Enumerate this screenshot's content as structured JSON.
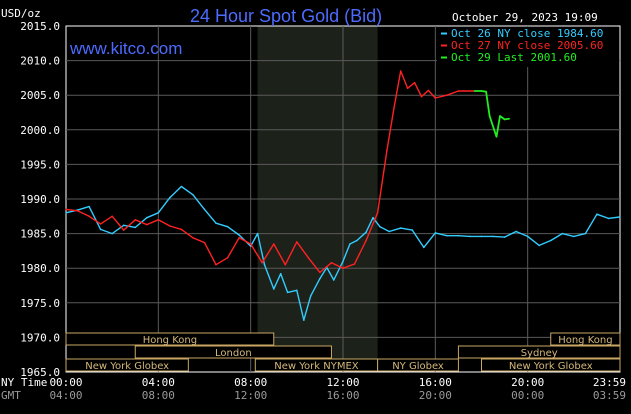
{
  "header": {
    "title": "24 Hour Spot Gold (Bid)",
    "brand": "www.kitco.com",
    "datetime": "October 29, 2023 19:09",
    "y_unit": "USD/oz"
  },
  "chart_data": {
    "type": "line",
    "ylim": [
      1965,
      2015
    ],
    "yticks": [
      "2015.0",
      "2010.0",
      "2005.0",
      "2000.0",
      "1995.0",
      "1990.0",
      "1985.0",
      "1980.0",
      "1975.0",
      "1970.0",
      "1965.0"
    ],
    "xlim": [
      0,
      24
    ],
    "xticks_ny": [
      "00:00",
      "04:00",
      "08:00",
      "12:00",
      "16:00",
      "20:00",
      "23:59"
    ],
    "xticks_gmt": [
      "04:00",
      "08:00",
      "12:00",
      "16:00",
      "20:00",
      "00:00",
      "03:59"
    ],
    "xaxis_row_labels": [
      "NY Time",
      "GMT"
    ],
    "grid": true,
    "shaded_hours": [
      8.3,
      13.5
    ],
    "legend_placement": "top-right",
    "series": [
      {
        "name": "Oct 26 NY close 1984.60",
        "color": "#33ccff",
        "x": [
          0,
          0.5,
          1,
          1.5,
          2,
          2.5,
          3,
          3.5,
          4,
          4.5,
          5,
          5.5,
          6,
          6.5,
          7,
          7.5,
          8,
          8.3,
          8.6,
          9,
          9.3,
          9.6,
          10,
          10.3,
          10.6,
          11,
          11.3,
          11.6,
          12,
          12.3,
          12.6,
          13,
          13.3,
          13.6,
          14,
          14.5,
          15,
          15.5,
          16,
          16.5,
          17,
          17.5,
          18,
          18.5,
          19,
          19.5,
          20,
          20.5,
          21,
          21.5,
          22,
          22.5,
          23,
          23.5,
          23.98
        ],
        "values": [
          1988.0,
          1988.4,
          1988.9,
          1985.6,
          1985.0,
          1986.2,
          1985.9,
          1987.3,
          1988.0,
          1990.2,
          1991.8,
          1990.6,
          1988.5,
          1986.5,
          1986.0,
          1984.8,
          1983.2,
          1985.0,
          1980.5,
          1977.0,
          1979.2,
          1976.5,
          1976.8,
          1972.5,
          1976.0,
          1978.5,
          1980.1,
          1978.3,
          1981.0,
          1983.5,
          1984.0,
          1985.2,
          1987.3,
          1986.0,
          1985.3,
          1985.8,
          1985.5,
          1983.0,
          1985.1,
          1984.7,
          1984.7,
          1984.6,
          1984.6,
          1984.6,
          1984.5,
          1985.3,
          1984.6,
          1983.3,
          1984.0,
          1985.0,
          1984.6,
          1985.0,
          1987.8,
          1987.2,
          1987.4
        ]
      },
      {
        "name": "Oct 27 NY close 2005.60",
        "color": "#ff2222",
        "x": [
          0,
          0.5,
          1,
          1.5,
          2,
          2.5,
          3,
          3.5,
          4,
          4.5,
          5,
          5.5,
          6,
          6.5,
          7,
          7.5,
          8,
          8.5,
          9,
          9.5,
          10,
          10.5,
          11,
          11.5,
          12,
          12.5,
          13,
          13.5,
          13.9,
          14.2,
          14.5,
          14.8,
          15.1,
          15.4,
          15.7,
          16,
          16.5,
          17,
          17.3,
          17.7
        ],
        "values": [
          1988.5,
          1988.3,
          1987.5,
          1986.4,
          1987.5,
          1985.5,
          1987.0,
          1986.3,
          1987.0,
          1986.1,
          1985.6,
          1984.4,
          1983.7,
          1980.5,
          1981.5,
          1984.4,
          1983.5,
          1980.8,
          1983.5,
          1980.5,
          1983.8,
          1981.5,
          1979.4,
          1980.8,
          1980.0,
          1980.6,
          1984.0,
          1988.0,
          1997.0,
          2003.0,
          2008.5,
          2006.0,
          2006.8,
          2004.8,
          2005.7,
          2004.6,
          2005.0,
          2005.6,
          2005.6,
          2005.6
        ]
      },
      {
        "name": "Oct 29 Last 2001.60",
        "color": "#22ee22",
        "x": [
          17.7,
          18.0,
          18.2,
          18.35,
          18.5,
          18.65,
          18.8,
          19.0,
          19.2
        ],
        "values": [
          2005.6,
          2005.6,
          2005.5,
          2002.0,
          2000.5,
          1999.0,
          2002.0,
          2001.5,
          2001.6
        ]
      }
    ],
    "sessions": [
      {
        "label": "Hong Kong",
        "start": 0,
        "end": 9.0,
        "row": 0
      },
      {
        "label": "Hong Kong",
        "start": 21.0,
        "end": 24,
        "row": 0
      },
      {
        "label": "London",
        "start": 3.0,
        "end": 11.5,
        "row": 1
      },
      {
        "label": "Sydney",
        "start": 17.0,
        "end": 24,
        "row": 1
      },
      {
        "label": "New York Globex",
        "start": 0,
        "end": 5.3,
        "row": 2
      },
      {
        "label": "New York NYMEX",
        "start": 8.2,
        "end": 13.5,
        "row": 2
      },
      {
        "label": "NY Globex",
        "start": 13.5,
        "end": 17.0,
        "row": 2
      },
      {
        "label": "New York Globex",
        "start": 18.0,
        "end": 24,
        "row": 2
      }
    ]
  }
}
